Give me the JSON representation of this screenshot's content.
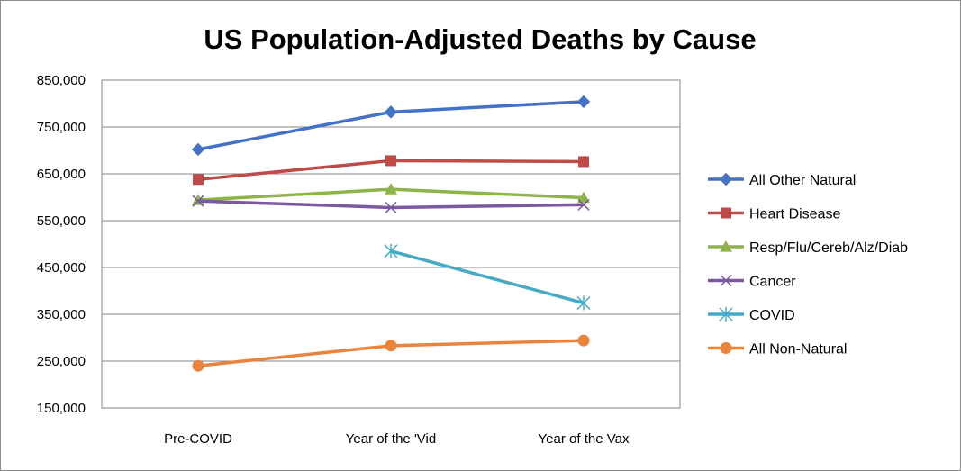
{
  "chart_data": {
    "type": "line",
    "title": "US Population-Adjusted Deaths by Cause",
    "xlabel": "",
    "ylabel": "",
    "categories": [
      "Pre-COVID",
      "Year of the 'Vid",
      "Year of the Vax"
    ],
    "ylim": [
      150000,
      850000
    ],
    "yticks": [
      150000,
      250000,
      350000,
      450000,
      550000,
      650000,
      750000,
      850000
    ],
    "ytick_labels": [
      "150,000",
      "250,000",
      "350,000",
      "450,000",
      "550,000",
      "650,000",
      "750,000",
      "850,000"
    ],
    "grid": "horizontal",
    "legend_position": "right",
    "series": [
      {
        "name": "All Other Natural",
        "color": "#4472C4",
        "marker": "diamond",
        "values": [
          702000,
          782000,
          804000
        ]
      },
      {
        "name": "Heart Disease",
        "color": "#BE4B48",
        "marker": "square",
        "values": [
          638000,
          678000,
          676000
        ]
      },
      {
        "name": "Resp/Flu/Cereb/Alz/Diab",
        "color": "#8EB44A",
        "marker": "triangle",
        "values": [
          594000,
          617000,
          599000
        ]
      },
      {
        "name": "Cancer",
        "color": "#7B5A9E",
        "marker": "x",
        "values": [
          592000,
          578000,
          584000
        ]
      },
      {
        "name": "COVID",
        "color": "#46AAC5",
        "marker": "star",
        "values": [
          null,
          485000,
          374000
        ]
      },
      {
        "name": "All Non-Natural",
        "color": "#E8843C",
        "marker": "circle",
        "values": [
          240000,
          283000,
          294000
        ]
      }
    ]
  }
}
